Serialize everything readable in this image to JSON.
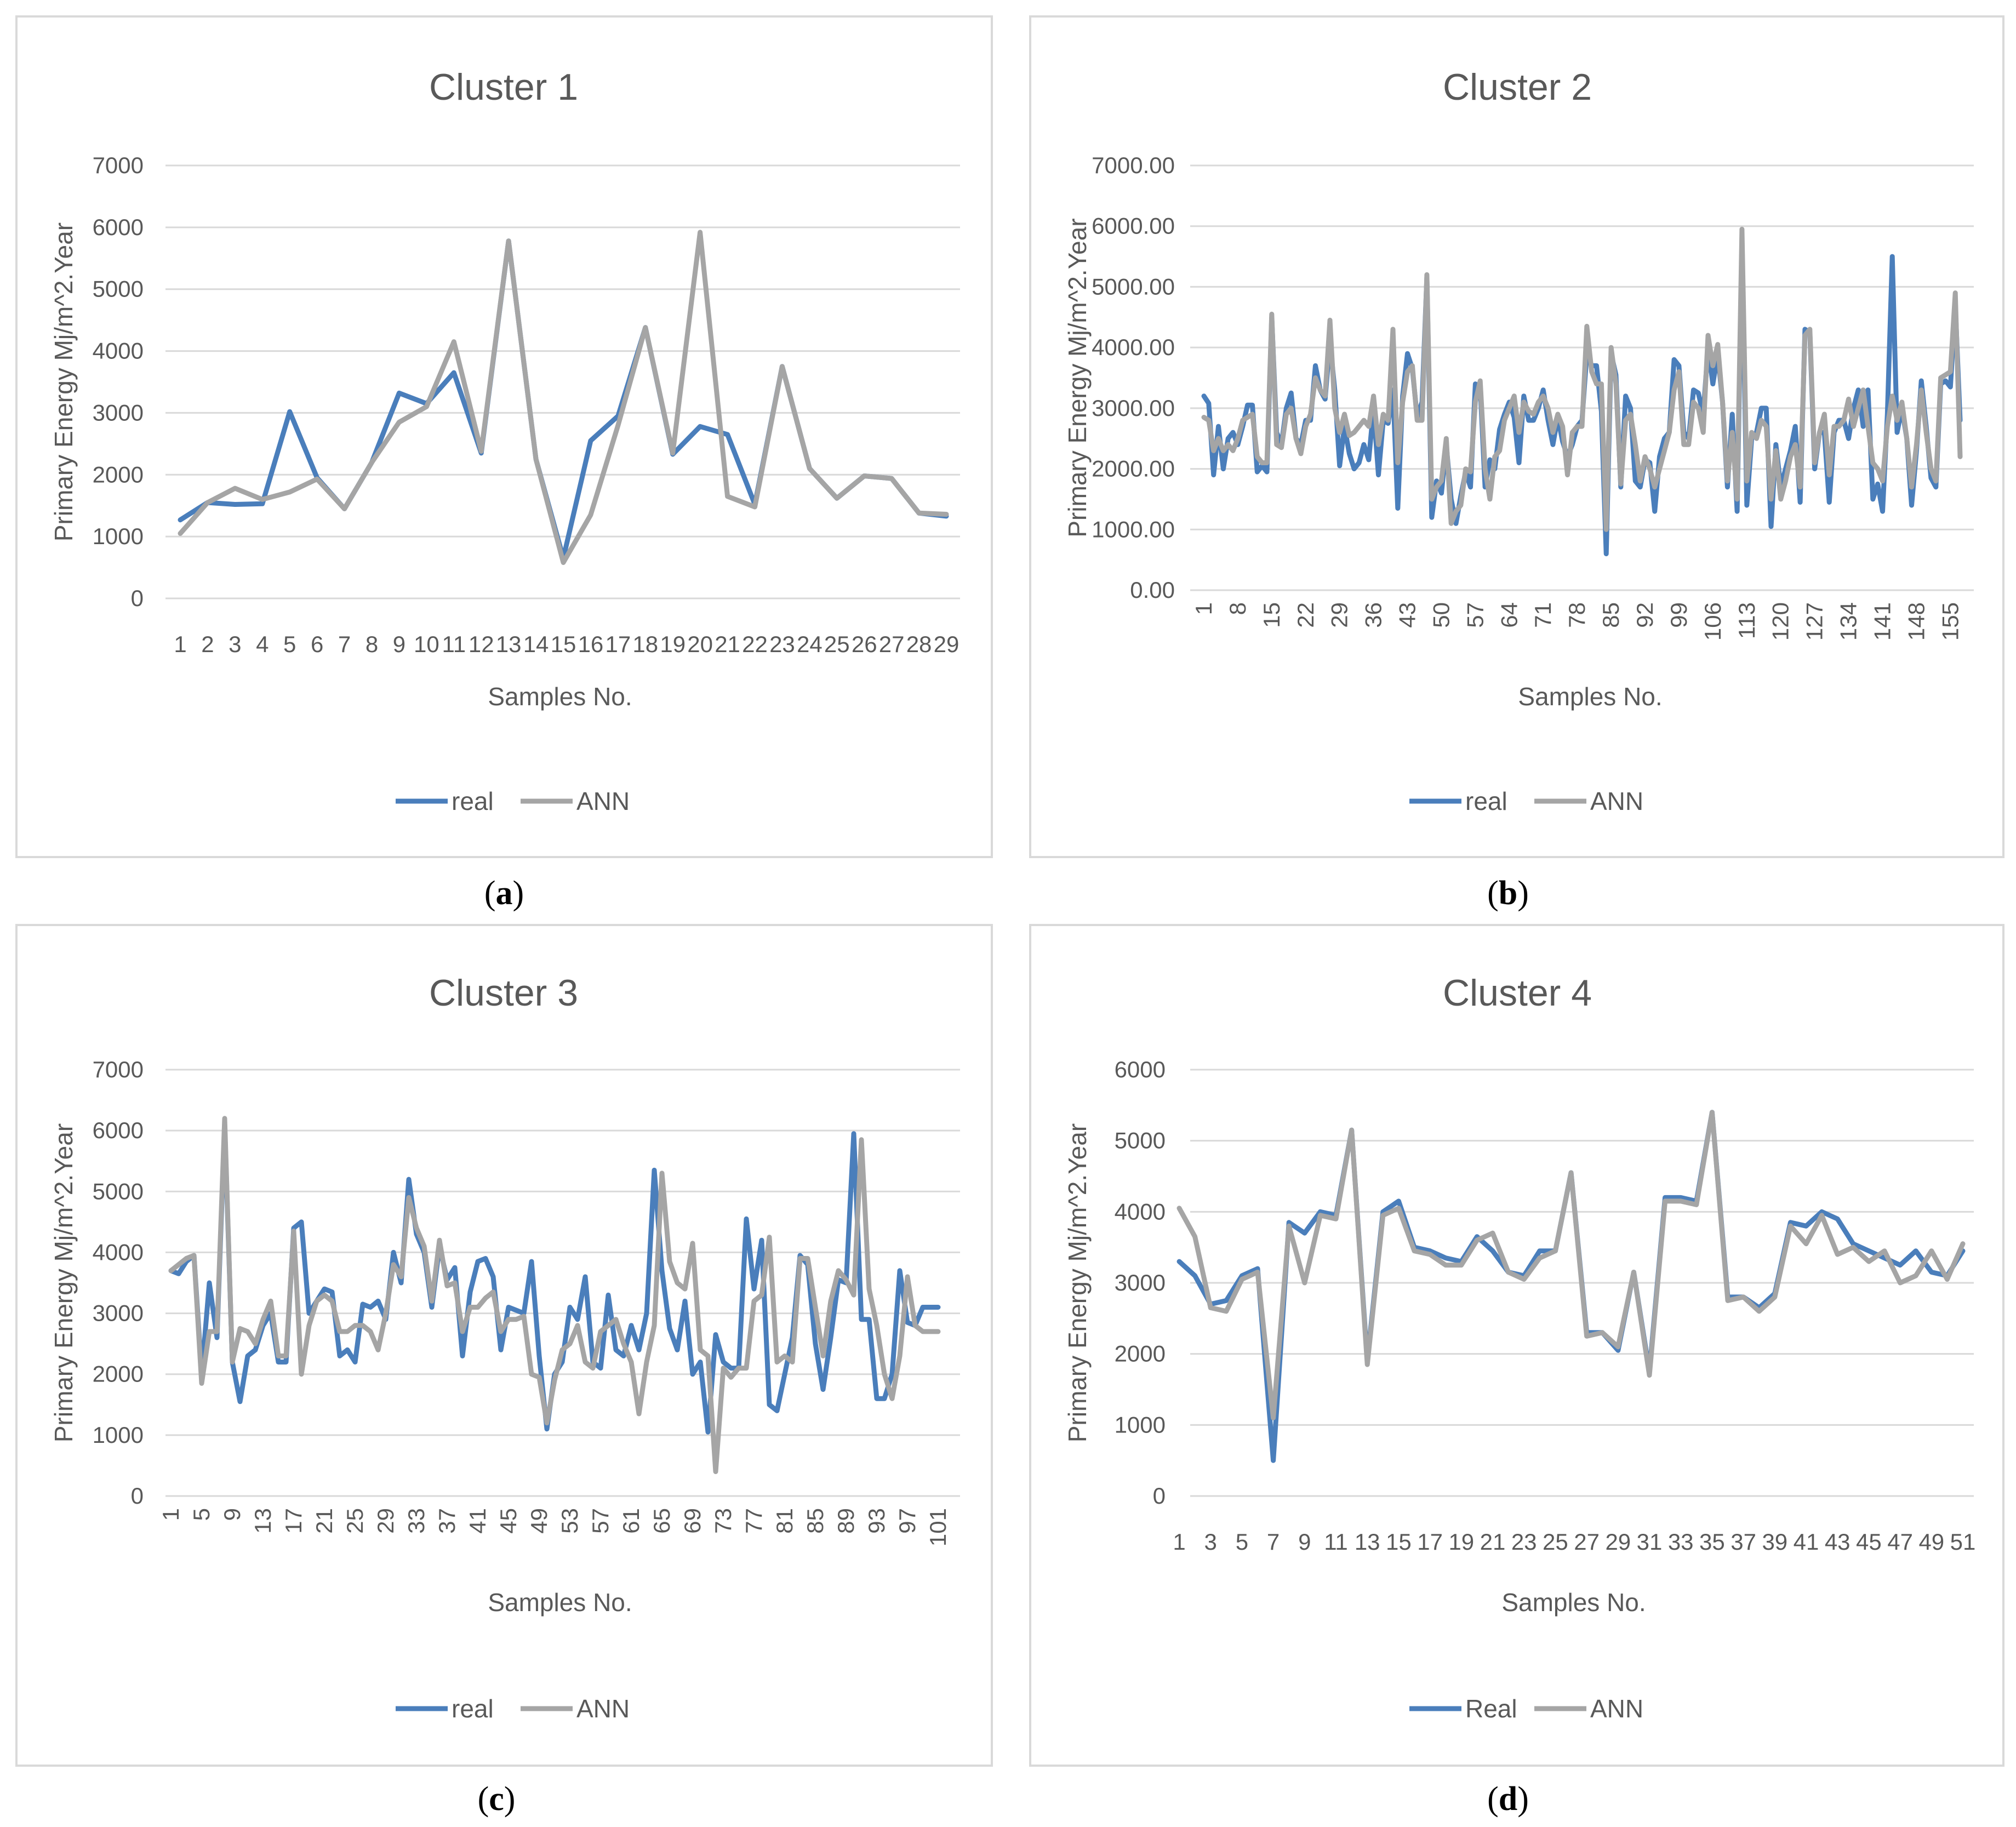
{
  "colors": {
    "real": "#4a7ebb",
    "ann": "#a5a5a5",
    "grid": "#d9d9d9",
    "text": "#595959"
  },
  "captions": [
    "a",
    "b",
    "c",
    "d"
  ],
  "chart_data": [
    {
      "type": "line",
      "title": "Cluster 1",
      "xlabel": "Samples No.",
      "ylabel": "Primary Energy Mj/m^2.Year",
      "ylim": [
        0,
        7000
      ],
      "yticks": [
        "0",
        "1000",
        "2000",
        "3000",
        "4000",
        "5000",
        "6000",
        "7000"
      ],
      "xtick_step": 1,
      "xtick_rotated": false,
      "categories": [
        "1",
        "2",
        "3",
        "4",
        "5",
        "6",
        "7",
        "8",
        "9",
        "10",
        "11",
        "12",
        "13",
        "14",
        "15",
        "16",
        "17",
        "18",
        "19",
        "20",
        "21",
        "22",
        "23",
        "24",
        "25",
        "26",
        "27",
        "28",
        "29"
      ],
      "series": [
        {
          "name": "real",
          "values": [
            1270,
            1550,
            1520,
            1530,
            3020,
            1950,
            1450,
            2200,
            3320,
            3150,
            3650,
            2350,
            5780,
            2250,
            650,
            2550,
            2950,
            4380,
            2330,
            2780,
            2650,
            1520,
            3750,
            2100,
            1620,
            1980,
            1940,
            1380,
            1330
          ]
        },
        {
          "name": "ANN",
          "values": [
            1050,
            1550,
            1780,
            1600,
            1720,
            1930,
            1450,
            2200,
            2850,
            3100,
            4150,
            2380,
            5780,
            2250,
            580,
            1350,
            2800,
            4380,
            2350,
            5920,
            1650,
            1480,
            3750,
            2100,
            1620,
            1980,
            1940,
            1380,
            1360
          ]
        }
      ],
      "legend": [
        "real",
        "ANN"
      ]
    },
    {
      "type": "line",
      "title": "Cluster 2",
      "xlabel": "Samples No.",
      "ylabel": "Primary Energy Mj/m^2.Year",
      "ylim": [
        0,
        7000
      ],
      "yticks": [
        "0.00",
        "1000.00",
        "2000.00",
        "3000.00",
        "4000.00",
        "5000.00",
        "6000.00",
        "7000.00"
      ],
      "xtick_step": 7,
      "xtick_rotated": true,
      "categories": [
        "1",
        "2",
        "3",
        "4",
        "5",
        "6",
        "7",
        "8",
        "9",
        "10",
        "11",
        "12",
        "13",
        "14",
        "15",
        "16",
        "17",
        "18",
        "19",
        "20",
        "21",
        "22",
        "23",
        "24",
        "25",
        "26",
        "27",
        "28",
        "29",
        "30",
        "31",
        "32",
        "33",
        "34",
        "35",
        "36",
        "37",
        "38",
        "39",
        "40",
        "41",
        "42",
        "43",
        "44",
        "45",
        "46",
        "47",
        "48",
        "49",
        "50",
        "51",
        "52",
        "53",
        "54",
        "55",
        "56",
        "57",
        "58",
        "59",
        "60",
        "61",
        "62",
        "63",
        "64",
        "65",
        "66",
        "67",
        "68",
        "69",
        "70",
        "71",
        "72",
        "73",
        "74",
        "75",
        "76",
        "77",
        "78",
        "79",
        "80",
        "81",
        "82",
        "83",
        "84",
        "85",
        "86",
        "87",
        "88",
        "89",
        "90",
        "91",
        "92",
        "93",
        "94",
        "95",
        "96",
        "97",
        "98",
        "99",
        "100",
        "101",
        "102",
        "103",
        "104",
        "105",
        "106",
        "107",
        "108",
        "109",
        "110",
        "111",
        "112",
        "113",
        "114",
        "115",
        "116",
        "117",
        "118",
        "119",
        "120",
        "121",
        "122",
        "123",
        "124",
        "125",
        "126",
        "127",
        "128",
        "129",
        "130",
        "131",
        "132",
        "133",
        "134",
        "135",
        "136",
        "137",
        "138",
        "139",
        "140",
        "141",
        "142",
        "143",
        "144",
        "145",
        "146",
        "147",
        "148",
        "149",
        "150",
        "151",
        "152",
        "153",
        "154",
        "155",
        "156",
        "157"
      ],
      "series": [
        {
          "name": "real",
          "values": [
            3200,
            3080,
            1900,
            2700,
            2000,
            2500,
            2600,
            2400,
            2700,
            3050,
            3050,
            1950,
            2050,
            1950,
            4500,
            2600,
            2400,
            3000,
            3250,
            2500,
            2400,
            2800,
            2800,
            3700,
            3300,
            3150,
            4100,
            3300,
            2050,
            2700,
            2250,
            2000,
            2100,
            2400,
            2150,
            3000,
            1900,
            2800,
            2750,
            3300,
            1350,
            3200,
            3900,
            3650,
            2850,
            3100,
            5150,
            1200,
            1800,
            1600,
            2400,
            1500,
            1100,
            1550,
            1950,
            1700,
            3400,
            3350,
            1700,
            2150,
            2000,
            2650,
            2900,
            3100,
            2850,
            2100,
            3200,
            2800,
            2800,
            3000,
            3300,
            2800,
            2400,
            2850,
            2450,
            2200,
            2400,
            2700,
            2800,
            3900,
            3700,
            3700,
            2950,
            600,
            3900,
            3550,
            1700,
            3200,
            3000,
            1800,
            1700,
            2150,
            2100,
            1300,
            2200,
            2500,
            2600,
            3800,
            3700,
            2600,
            2500,
            3300,
            3250,
            2900,
            4000,
            3400,
            3900,
            3100,
            1700,
            2900,
            1300,
            5700,
            1400,
            2500,
            2600,
            3000,
            3000,
            1050,
            2400,
            1700,
            2000,
            2300,
            2700,
            1450,
            4300,
            4250,
            2000,
            2600,
            2600,
            1450,
            2600,
            2800,
            2800,
            2500,
            3000,
            3300,
            2700,
            3300,
            1500,
            1750,
            1300,
            2900,
            5500,
            2600,
            3000,
            2500,
            1400,
            2300,
            3450,
            2700,
            1850,
            1700,
            3400,
            3450,
            3350,
            4700,
            2800
          ]
        },
        {
          "name": "ANN",
          "values": [
            2850,
            2800,
            2300,
            2500,
            2300,
            2400,
            2300,
            2500,
            2800,
            2850,
            2900,
            2200,
            2100,
            2100,
            4550,
            2400,
            2350,
            2900,
            3000,
            2500,
            2250,
            2700,
            2900,
            3500,
            3300,
            3200,
            4450,
            3000,
            2600,
            2900,
            2550,
            2600,
            2700,
            2800,
            2700,
            3200,
            2400,
            2900,
            2800,
            4300,
            2100,
            3100,
            3600,
            3700,
            2800,
            2800,
            5200,
            1500,
            1700,
            1800,
            2500,
            1100,
            1300,
            1400,
            2000,
            1950,
            3100,
            3450,
            2000,
            1500,
            2200,
            2300,
            2800,
            3000,
            3200,
            2600,
            3100,
            2950,
            2900,
            3100,
            3200,
            3000,
            2600,
            2900,
            2700,
            1900,
            2600,
            2700,
            2700,
            4350,
            3600,
            3400,
            3400,
            1000,
            4000,
            3400,
            1750,
            2800,
            2900,
            2400,
            1800,
            2200,
            2000,
            1700,
            2000,
            2300,
            2600,
            3300,
            3600,
            2400,
            2400,
            3100,
            3000,
            2600,
            4200,
            3700,
            4050,
            3100,
            1800,
            2600,
            1500,
            5950,
            1800,
            2600,
            2500,
            2800,
            2700,
            1500,
            2300,
            1500,
            1800,
            2200,
            2400,
            1700,
            4200,
            4300,
            2100,
            2600,
            2900,
            1900,
            2700,
            2700,
            2800,
            3150,
            2700,
            3000,
            3300,
            2700,
            2100,
            2000,
            1800,
            2700,
            3200,
            2800,
            3100,
            2500,
            1700,
            2400,
            3300,
            2600,
            2000,
            1800,
            3500,
            3550,
            3600,
            4900,
            2200
          ]
        }
      ],
      "legend": [
        "real",
        "ANN"
      ]
    },
    {
      "type": "line",
      "title": "Cluster 3",
      "xlabel": "Samples No.",
      "ylabel": "Primary Energy Mj/m^2.Year",
      "ylim": [
        0,
        7000
      ],
      "yticks": [
        "0",
        "1000",
        "2000",
        "3000",
        "4000",
        "5000",
        "6000",
        "7000"
      ],
      "xtick_step": 4,
      "xtick_rotated": true,
      "categories": [
        "1",
        "2",
        "3",
        "4",
        "5",
        "6",
        "7",
        "8",
        "9",
        "10",
        "11",
        "12",
        "13",
        "14",
        "15",
        "16",
        "17",
        "18",
        "19",
        "20",
        "21",
        "22",
        "23",
        "24",
        "25",
        "26",
        "27",
        "28",
        "29",
        "30",
        "31",
        "32",
        "33",
        "34",
        "35",
        "36",
        "37",
        "38",
        "39",
        "40",
        "41",
        "42",
        "43",
        "44",
        "45",
        "46",
        "47",
        "48",
        "49",
        "50",
        "51",
        "52",
        "53",
        "54",
        "55",
        "56",
        "57",
        "58",
        "59",
        "60",
        "61",
        "62",
        "63",
        "64",
        "65",
        "66",
        "67",
        "68",
        "69",
        "70",
        "71",
        "72",
        "73",
        "74",
        "75",
        "76",
        "77",
        "78",
        "79",
        "80",
        "81",
        "82",
        "83",
        "84",
        "85",
        "86",
        "87",
        "88",
        "89",
        "90",
        "91",
        "92",
        "93",
        "94",
        "95",
        "96",
        "97",
        "98",
        "99",
        "100",
        "101"
      ],
      "series": [
        {
          "name": "real",
          "values": [
            3700,
            3650,
            3850,
            3950,
            2000,
            3500,
            2600,
            6100,
            2200,
            1550,
            2300,
            2400,
            2800,
            3000,
            2200,
            2200,
            4400,
            4500,
            3000,
            3200,
            3400,
            3350,
            2300,
            2400,
            2200,
            3150,
            3100,
            3200,
            2900,
            4000,
            3500,
            5200,
            4300,
            4000,
            3100,
            4100,
            3550,
            3750,
            2300,
            3350,
            3850,
            3900,
            3600,
            2400,
            3100,
            3050,
            3000,
            3850,
            2300,
            1100,
            2000,
            2200,
            3100,
            2900,
            3600,
            2200,
            2100,
            3300,
            2400,
            2300,
            2800,
            2400,
            3000,
            5350,
            3700,
            2750,
            2400,
            3200,
            2000,
            2200,
            1050,
            2650,
            2200,
            2100,
            2100,
            4550,
            3400,
            4200,
            1500,
            1400,
            2000,
            2600,
            3950,
            3800,
            2500,
            1750,
            2600,
            3550,
            3500,
            5950,
            2900,
            2900,
            1600,
            1600,
            2000,
            3700,
            2850,
            2800,
            3100,
            3100,
            3100
          ]
        },
        {
          "name": "ANN",
          "values": [
            3700,
            3800,
            3900,
            3950,
            1850,
            2700,
            2700,
            6200,
            2200,
            2750,
            2700,
            2500,
            2900,
            3200,
            2300,
            2300,
            4350,
            2000,
            2800,
            3200,
            3300,
            3200,
            2700,
            2700,
            2800,
            2800,
            2700,
            2400,
            3000,
            3800,
            3600,
            4900,
            4400,
            4100,
            3200,
            4200,
            3450,
            3500,
            2700,
            3100,
            3100,
            3250,
            3350,
            2700,
            2900,
            2900,
            2950,
            2000,
            1950,
            1200,
            1900,
            2400,
            2500,
            2800,
            2200,
            2100,
            2700,
            2800,
            2900,
            2500,
            2200,
            1350,
            2200,
            2800,
            5300,
            3850,
            3500,
            3400,
            4150,
            2400,
            2300,
            400,
            2100,
            1950,
            2100,
            2100,
            3200,
            3300,
            4250,
            2200,
            2300,
            2200,
            3900,
            3900,
            3100,
            2300,
            3200,
            3700,
            3550,
            3300,
            5850,
            3400,
            2800,
            2000,
            1600,
            2300,
            3600,
            2800,
            2700,
            2700,
            2700
          ]
        }
      ],
      "legend": [
        "real",
        "ANN"
      ]
    },
    {
      "type": "line",
      "title": "Cluster 4",
      "xlabel": "Samples No.",
      "ylabel": "Primary Energy Mj/m^2.Year",
      "ylim": [
        0,
        6000
      ],
      "yticks": [
        "0",
        "1000",
        "2000",
        "3000",
        "4000",
        "5000",
        "6000"
      ],
      "xtick_step": 2,
      "xtick_rotated": false,
      "categories": [
        "1",
        "2",
        "3",
        "4",
        "5",
        "6",
        "7",
        "8",
        "9",
        "10",
        "11",
        "12",
        "13",
        "14",
        "15",
        "16",
        "17",
        "18",
        "19",
        "20",
        "21",
        "22",
        "23",
        "24",
        "25",
        "26",
        "27",
        "28",
        "29",
        "30",
        "31",
        "32",
        "33",
        "34",
        "35",
        "36",
        "37",
        "38",
        "39",
        "40",
        "41",
        "42",
        "43",
        "44",
        "45",
        "46",
        "47",
        "48",
        "49",
        "50",
        "51"
      ],
      "series": [
        {
          "name": "Real",
          "values": [
            3300,
            3100,
            2700,
            2750,
            3100,
            3200,
            500,
            3850,
            3700,
            4000,
            3950,
            5150,
            1900,
            4000,
            4150,
            3500,
            3450,
            3350,
            3300,
            3650,
            3450,
            3150,
            3100,
            3450,
            3450,
            4550,
            2300,
            2300,
            2050,
            3150,
            1750,
            4200,
            4200,
            4150,
            5400,
            2800,
            2800,
            2650,
            2850,
            3850,
            3800,
            4000,
            3900,
            3550,
            3450,
            3350,
            3250,
            3450,
            3150,
            3100,
            3450
          ]
        },
        {
          "name": "ANN",
          "values": [
            4050,
            3650,
            2650,
            2600,
            3050,
            3150,
            1100,
            3800,
            3000,
            3950,
            3900,
            5150,
            1850,
            3950,
            4050,
            3450,
            3400,
            3250,
            3250,
            3600,
            3700,
            3150,
            3050,
            3350,
            3450,
            4550,
            2250,
            2300,
            2100,
            3150,
            1700,
            4150,
            4150,
            4100,
            5400,
            2750,
            2800,
            2600,
            2800,
            3800,
            3550,
            3950,
            3400,
            3500,
            3300,
            3450,
            3000,
            3100,
            3450,
            3050,
            3550
          ]
        }
      ],
      "legend": [
        "Real",
        "ANN"
      ]
    }
  ]
}
